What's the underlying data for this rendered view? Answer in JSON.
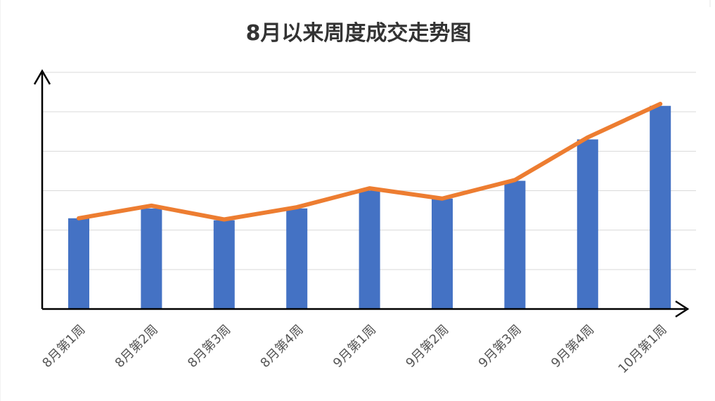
{
  "chart_data": {
    "type": "bar",
    "title": "8月以来周度成交走势图",
    "xlabel": "",
    "ylabel": "",
    "categories": [
      "8月第1周",
      "8月第2周",
      "8月第3周",
      "8月第4周",
      "9月第1周",
      "9月第2周",
      "9月第3周",
      "9月第4周",
      "10月第1周"
    ],
    "series": [
      {
        "type": "bar",
        "values": [
          2.3,
          2.55,
          2.25,
          2.55,
          3.0,
          2.8,
          3.25,
          4.3,
          5.15
        ]
      },
      {
        "type": "line",
        "values": [
          2.3,
          2.62,
          2.27,
          2.58,
          3.06,
          2.8,
          3.27,
          4.35,
          5.2
        ]
      }
    ],
    "ylim": [
      0,
      6
    ],
    "grid": true,
    "legend": "none",
    "ticks_shown": false,
    "colors": {
      "bar": "#4472c4",
      "line": "#ed7d31",
      "grid": "#d9d9d9",
      "axis": "#000000"
    }
  }
}
